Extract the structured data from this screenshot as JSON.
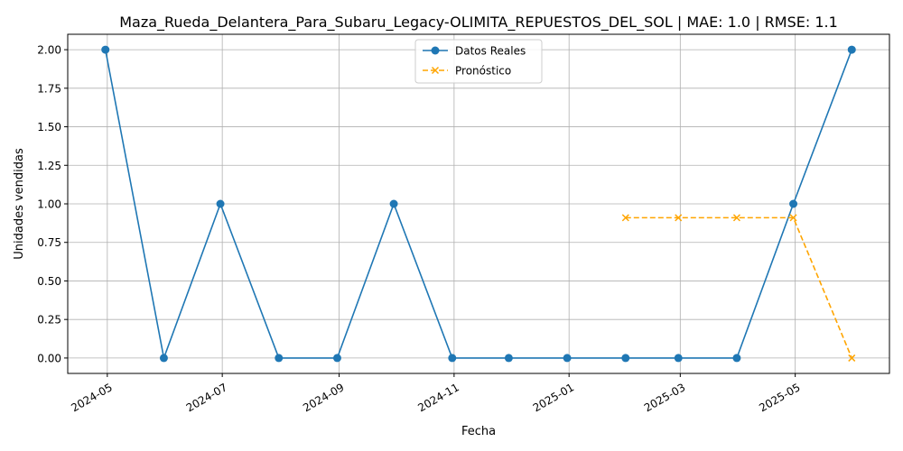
{
  "chart_data": {
    "type": "line",
    "title": "Maza_Rueda_Delantera_Para_Subaru_Legacy-OLIMITA_REPUESTOS_DEL_SOL | MAE: 1.0 | RMSE: 1.1",
    "xlabel": "Fecha",
    "ylabel": "Unidades vendidas",
    "grid": true,
    "legend_position": "upper center",
    "xlim": [
      "2024-04-10",
      "2025-06-20"
    ],
    "ylim": [
      -0.1,
      2.1
    ],
    "x_ticks": [
      "2024-05",
      "2024-07",
      "2024-09",
      "2024-11",
      "2025-01",
      "2025-03",
      "2025-05"
    ],
    "y_ticks": [
      "0.00",
      "0.25",
      "0.50",
      "0.75",
      "1.00",
      "1.25",
      "1.50",
      "1.75",
      "2.00"
    ],
    "series": [
      {
        "name": "Datos Reales",
        "color": "#1f77b4",
        "style": "solid",
        "marker": "circle",
        "x": [
          "2024-04-30",
          "2024-05-31",
          "2024-06-30",
          "2024-07-31",
          "2024-08-31",
          "2024-09-30",
          "2024-10-31",
          "2024-11-30",
          "2024-12-31",
          "2025-01-31",
          "2025-02-28",
          "2025-03-31",
          "2025-04-30",
          "2025-05-31"
        ],
        "values": [
          2,
          0,
          1,
          0,
          0,
          1,
          0,
          0,
          0,
          0,
          0,
          0,
          1,
          2
        ]
      },
      {
        "name": "Pronóstico",
        "color": "#ffa500",
        "style": "dashed",
        "marker": "x",
        "x": [
          "2025-01-31",
          "2025-02-28",
          "2025-03-31",
          "2025-04-30",
          "2025-05-31"
        ],
        "values": [
          0.91,
          0.91,
          0.91,
          0.91,
          0.0
        ]
      }
    ]
  }
}
